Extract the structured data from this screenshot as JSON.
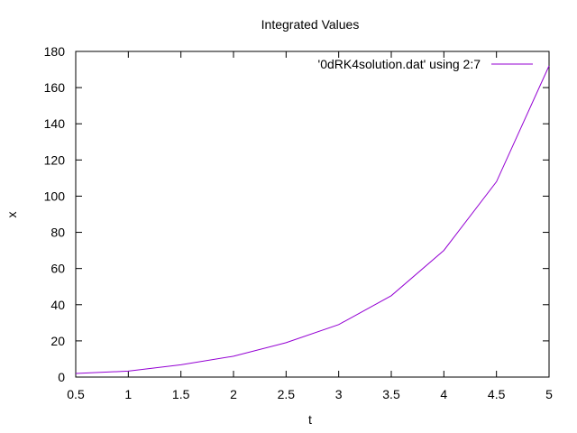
{
  "chart_data": {
    "type": "line",
    "title": "Integrated Values",
    "xlabel": "t",
    "ylabel": "x",
    "xlim": [
      0.5,
      5
    ],
    "ylim": [
      0,
      180
    ],
    "xticks": [
      0.5,
      1,
      1.5,
      2,
      2.5,
      3,
      3.5,
      4,
      4.5,
      5
    ],
    "xtick_labels": [
      "0.5",
      "1",
      "1.5",
      "2",
      "2.5",
      "3",
      "3.5",
      "4",
      "4.5",
      "5"
    ],
    "yticks": [
      0,
      20,
      40,
      60,
      80,
      100,
      120,
      140,
      160,
      180
    ],
    "ytick_labels": [
      "0",
      "20",
      "40",
      "60",
      "80",
      "100",
      "120",
      "140",
      "160",
      "180"
    ],
    "grid": false,
    "legend_position": "top-right",
    "series": [
      {
        "name": "'0dRK4solution.dat' using 2:7",
        "color": "#9400d3",
        "x": [
          0.5,
          1,
          1.5,
          2,
          2.5,
          3,
          3.5,
          4,
          4.5,
          5
        ],
        "y": [
          2,
          3.3,
          6.8,
          11.5,
          19,
          29,
          45,
          70,
          108,
          172
        ]
      }
    ]
  }
}
